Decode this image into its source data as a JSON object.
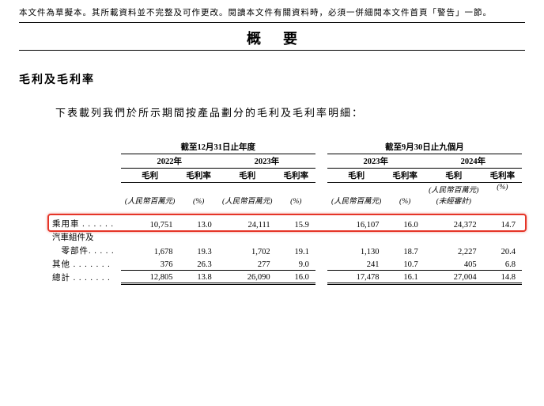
{
  "disclaimer": "本文件為草擬本。其所載資料並不完整及可作更改。閱讀本文件有關資料時，必須一併細閱本文件首頁「警告」一節。",
  "title": "概要",
  "section_heading": "毛利及毛利率",
  "intro": "下表載列我們於所示期間按產品劃分的毛利及毛利率明細：",
  "period_headers": {
    "left": "截至12月31日止年度",
    "right": "截至9月30日止九個月"
  },
  "years": {
    "y1": "2022年",
    "y2": "2023年",
    "y3": "2023年",
    "y4": "2024年"
  },
  "subheaders": {
    "gross": "毛利",
    "margin": "毛利率"
  },
  "units": {
    "rmb": "(人民幣百萬元)",
    "pct": "(%)",
    "unaudited": "(未經審計)"
  },
  "rows": [
    {
      "label": "乘用車 . . . . . .",
      "v": [
        "10,751",
        "13.0",
        "24,111",
        "15.9",
        "16,107",
        "16.0",
        "24,372",
        "14.7"
      ],
      "highlight": true
    },
    {
      "label": "汽車組件及",
      "continuation": true
    },
    {
      "label": "　零部件. . . . .",
      "v": [
        "1,678",
        "19.3",
        "1,702",
        "19.1",
        "1,130",
        "18.7",
        "2,227",
        "20.4"
      ]
    },
    {
      "label": "其他 . . . . . . .",
      "v": [
        "376",
        "26.3",
        "277",
        "9.0",
        "241",
        "10.7",
        "405",
        "6.8"
      ],
      "underline": true
    }
  ],
  "total": {
    "label": "總計 . . . . . . .",
    "v": [
      "12,805",
      "13.8",
      "26,090",
      "16.0",
      "17,478",
      "16.1",
      "27,004",
      "14.8"
    ]
  },
  "colors": {
    "highlight_border": "#e53528",
    "text": "#000000",
    "bg": "#ffffff"
  },
  "col_widths": {
    "label": 72,
    "num": 60,
    "pct": 40,
    "gap": 12
  }
}
